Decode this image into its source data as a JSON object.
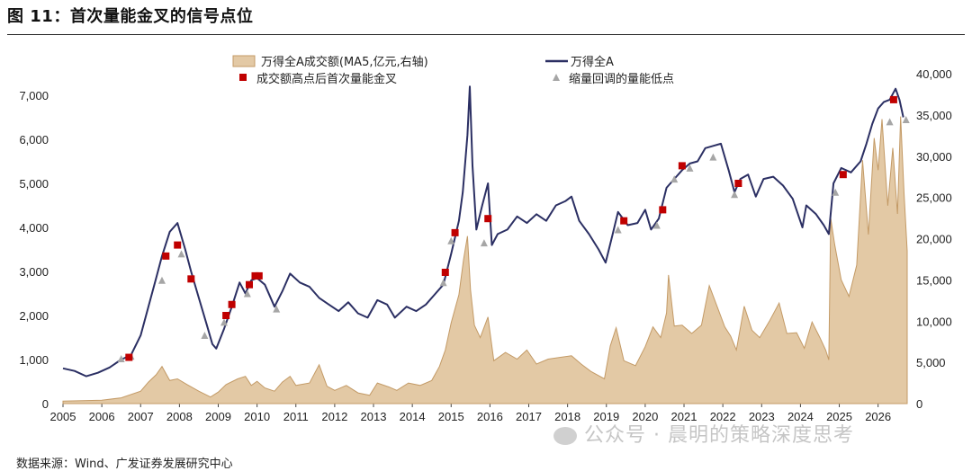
{
  "figure": {
    "title": "图 11：首次量能金叉的信号点位",
    "source": "数据来源：Wind、广发证券发展研究中心",
    "watermark": "公众号 · 晨明的策略深度思考"
  },
  "chart_data": {
    "type": "line",
    "x_axis": {
      "labels": [
        "2005",
        "2006",
        "2007",
        "2008",
        "2009",
        "2010",
        "2011",
        "2012",
        "2013",
        "2014",
        "2015",
        "2016",
        "2017",
        "2018",
        "2019",
        "2020",
        "2021",
        "2022",
        "2023",
        "2024",
        "2025",
        "2026"
      ],
      "range": [
        2005,
        2026.75
      ]
    },
    "y_left": {
      "ticks": [
        "0",
        "1,000",
        "2,000",
        "3,000",
        "4,000",
        "5,000",
        "6,000",
        "7,000"
      ],
      "range": [
        0,
        7000
      ]
    },
    "y_right": {
      "ticks": [
        "0",
        "5,000",
        "10,000",
        "15,000",
        "20,000",
        "25,000",
        "30,000",
        "35,000",
        "40,000"
      ],
      "range": [
        0,
        40000
      ]
    },
    "legend": {
      "position": "top",
      "labels": {
        "area": "万得全A成交额(MA5,亿元,右轴)",
        "line": "万得全A",
        "red": "成交额高点后首次量能金叉",
        "gray": "缩量回调的量能低点"
      }
    },
    "colors": {
      "line": "#2b2f63",
      "area_fill": "#e3c9a5",
      "area_stroke": "#c39a66",
      "red": "#c00000",
      "gray": "#a6a6a6"
    },
    "series": [
      {
        "name": "万得全A",
        "axis": "left",
        "points": [
          [
            2005.0,
            800
          ],
          [
            2005.3,
            740
          ],
          [
            2005.6,
            620
          ],
          [
            2005.9,
            700
          ],
          [
            2006.2,
            820
          ],
          [
            2006.5,
            1000
          ],
          [
            2006.75,
            1100
          ],
          [
            2007.0,
            1550
          ],
          [
            2007.2,
            2200
          ],
          [
            2007.4,
            2850
          ],
          [
            2007.55,
            3350
          ],
          [
            2007.75,
            3900
          ],
          [
            2007.95,
            4100
          ],
          [
            2008.15,
            3500
          ],
          [
            2008.3,
            3000
          ],
          [
            2008.5,
            2400
          ],
          [
            2008.7,
            1800
          ],
          [
            2008.85,
            1350
          ],
          [
            2008.95,
            1250
          ],
          [
            2009.15,
            1700
          ],
          [
            2009.35,
            2200
          ],
          [
            2009.55,
            2750
          ],
          [
            2009.7,
            2500
          ],
          [
            2009.85,
            2800
          ],
          [
            2010.0,
            2850
          ],
          [
            2010.2,
            2700
          ],
          [
            2010.45,
            2200
          ],
          [
            2010.65,
            2550
          ],
          [
            2010.85,
            2950
          ],
          [
            2011.1,
            2750
          ],
          [
            2011.35,
            2650
          ],
          [
            2011.6,
            2400
          ],
          [
            2011.85,
            2250
          ],
          [
            2012.1,
            2100
          ],
          [
            2012.35,
            2300
          ],
          [
            2012.6,
            2050
          ],
          [
            2012.85,
            1950
          ],
          [
            2013.1,
            2350
          ],
          [
            2013.35,
            2250
          ],
          [
            2013.55,
            1950
          ],
          [
            2013.85,
            2200
          ],
          [
            2014.1,
            2100
          ],
          [
            2014.35,
            2250
          ],
          [
            2014.55,
            2450
          ],
          [
            2014.8,
            2700
          ],
          [
            2015.0,
            3400
          ],
          [
            2015.2,
            4150
          ],
          [
            2015.3,
            4800
          ],
          [
            2015.42,
            6100
          ],
          [
            2015.48,
            7200
          ],
          [
            2015.55,
            5400
          ],
          [
            2015.65,
            3950
          ],
          [
            2015.8,
            4500
          ],
          [
            2015.95,
            5000
          ],
          [
            2016.05,
            3600
          ],
          [
            2016.2,
            3850
          ],
          [
            2016.45,
            3950
          ],
          [
            2016.7,
            4250
          ],
          [
            2016.95,
            4100
          ],
          [
            2017.2,
            4300
          ],
          [
            2017.45,
            4150
          ],
          [
            2017.7,
            4500
          ],
          [
            2017.95,
            4600
          ],
          [
            2018.1,
            4700
          ],
          [
            2018.3,
            4150
          ],
          [
            2018.55,
            3850
          ],
          [
            2018.8,
            3500
          ],
          [
            2018.98,
            3200
          ],
          [
            2019.15,
            3800
          ],
          [
            2019.3,
            4350
          ],
          [
            2019.55,
            4050
          ],
          [
            2019.8,
            4100
          ],
          [
            2020.0,
            4400
          ],
          [
            2020.15,
            3950
          ],
          [
            2020.35,
            4200
          ],
          [
            2020.55,
            4900
          ],
          [
            2020.75,
            5100
          ],
          [
            2020.95,
            5300
          ],
          [
            2021.15,
            5450
          ],
          [
            2021.35,
            5500
          ],
          [
            2021.55,
            5800
          ],
          [
            2021.75,
            5850
          ],
          [
            2021.95,
            5900
          ],
          [
            2022.15,
            5300
          ],
          [
            2022.3,
            4800
          ],
          [
            2022.45,
            5100
          ],
          [
            2022.65,
            5200
          ],
          [
            2022.85,
            4700
          ],
          [
            2023.05,
            5100
          ],
          [
            2023.3,
            5150
          ],
          [
            2023.55,
            4950
          ],
          [
            2023.8,
            4650
          ],
          [
            2024.05,
            4000
          ],
          [
            2024.15,
            4500
          ],
          [
            2024.4,
            4300
          ],
          [
            2024.6,
            4050
          ],
          [
            2024.73,
            3850
          ],
          [
            2024.85,
            5000
          ],
          [
            2025.05,
            5350
          ],
          [
            2025.3,
            5250
          ],
          [
            2025.55,
            5500
          ],
          [
            2025.7,
            5900
          ],
          [
            2025.85,
            6350
          ],
          [
            2026.0,
            6700
          ],
          [
            2026.15,
            6850
          ],
          [
            2026.3,
            6900
          ],
          [
            2026.45,
            7150
          ],
          [
            2026.55,
            6900
          ],
          [
            2026.65,
            6500
          ]
        ]
      },
      {
        "name": "万得全A成交额(MA5,亿元,右轴)",
        "axis": "right",
        "type": "area",
        "points": [
          [
            2005.0,
            300
          ],
          [
            2006.0,
            400
          ],
          [
            2006.5,
            700
          ],
          [
            2007.0,
            1500
          ],
          [
            2007.2,
            2600
          ],
          [
            2007.4,
            3500
          ],
          [
            2007.55,
            4500
          ],
          [
            2007.75,
            2800
          ],
          [
            2007.95,
            3000
          ],
          [
            2008.2,
            2300
          ],
          [
            2008.5,
            1500
          ],
          [
            2008.8,
            800
          ],
          [
            2009.0,
            1400
          ],
          [
            2009.2,
            2300
          ],
          [
            2009.5,
            3000
          ],
          [
            2009.7,
            3300
          ],
          [
            2009.85,
            2200
          ],
          [
            2010.0,
            2700
          ],
          [
            2010.2,
            1900
          ],
          [
            2010.45,
            1500
          ],
          [
            2010.65,
            2600
          ],
          [
            2010.85,
            3300
          ],
          [
            2011.0,
            2200
          ],
          [
            2011.35,
            2500
          ],
          [
            2011.6,
            4700
          ],
          [
            2011.8,
            2100
          ],
          [
            2012.0,
            1600
          ],
          [
            2012.3,
            2200
          ],
          [
            2012.6,
            1300
          ],
          [
            2012.9,
            1000
          ],
          [
            2013.1,
            2500
          ],
          [
            2013.4,
            2000
          ],
          [
            2013.6,
            1600
          ],
          [
            2013.9,
            2500
          ],
          [
            2014.2,
            2200
          ],
          [
            2014.5,
            2800
          ],
          [
            2014.7,
            4500
          ],
          [
            2014.85,
            6500
          ],
          [
            2015.0,
            9800
          ],
          [
            2015.2,
            13200
          ],
          [
            2015.32,
            17500
          ],
          [
            2015.42,
            20300
          ],
          [
            2015.5,
            13800
          ],
          [
            2015.6,
            9500
          ],
          [
            2015.75,
            8000
          ],
          [
            2015.95,
            10500
          ],
          [
            2016.1,
            5200
          ],
          [
            2016.4,
            6200
          ],
          [
            2016.7,
            5400
          ],
          [
            2016.95,
            6500
          ],
          [
            2017.2,
            4800
          ],
          [
            2017.5,
            5400
          ],
          [
            2017.8,
            5600
          ],
          [
            2018.1,
            5800
          ],
          [
            2018.35,
            4800
          ],
          [
            2018.6,
            3900
          ],
          [
            2018.95,
            3000
          ],
          [
            2019.1,
            7000
          ],
          [
            2019.25,
            9200
          ],
          [
            2019.45,
            5200
          ],
          [
            2019.75,
            4600
          ],
          [
            2020.0,
            6900
          ],
          [
            2020.2,
            9300
          ],
          [
            2020.4,
            8000
          ],
          [
            2020.55,
            11000
          ],
          [
            2020.6,
            15600
          ],
          [
            2020.75,
            9400
          ],
          [
            2020.95,
            9500
          ],
          [
            2021.2,
            8500
          ],
          [
            2021.45,
            9500
          ],
          [
            2021.65,
            14300
          ],
          [
            2021.85,
            11800
          ],
          [
            2022.05,
            9300
          ],
          [
            2022.2,
            8200
          ],
          [
            2022.35,
            6500
          ],
          [
            2022.55,
            11800
          ],
          [
            2022.75,
            8900
          ],
          [
            2022.95,
            8000
          ],
          [
            2023.2,
            10000
          ],
          [
            2023.45,
            12200
          ],
          [
            2023.65,
            8500
          ],
          [
            2023.9,
            8600
          ],
          [
            2024.1,
            6700
          ],
          [
            2024.3,
            9900
          ],
          [
            2024.5,
            8000
          ],
          [
            2024.65,
            6500
          ],
          [
            2024.73,
            5300
          ],
          [
            2024.78,
            22500
          ],
          [
            2024.88,
            19300
          ],
          [
            2025.05,
            15000
          ],
          [
            2025.25,
            13000
          ],
          [
            2025.45,
            16800
          ],
          [
            2025.6,
            29500
          ],
          [
            2025.75,
            20500
          ],
          [
            2025.9,
            32200
          ],
          [
            2026.0,
            28300
          ],
          [
            2026.1,
            34500
          ],
          [
            2026.25,
            24000
          ],
          [
            2026.38,
            31000
          ],
          [
            2026.5,
            23000
          ],
          [
            2026.58,
            34800
          ],
          [
            2026.67,
            25500
          ],
          [
            2026.75,
            18500
          ]
        ]
      }
    ],
    "markers": {
      "red": [
        [
          2006.7,
          1050
        ],
        [
          2007.65,
          3350
        ],
        [
          2007.95,
          3600
        ],
        [
          2008.3,
          2830
        ],
        [
          2009.2,
          2000
        ],
        [
          2009.35,
          2250
        ],
        [
          2009.8,
          2700
        ],
        [
          2009.95,
          2900
        ],
        [
          2010.05,
          2900
        ],
        [
          2014.85,
          2980
        ],
        [
          2015.1,
          3880
        ],
        [
          2015.95,
          4200
        ],
        [
          2019.45,
          4150
        ],
        [
          2020.45,
          4400
        ],
        [
          2020.95,
          5400
        ],
        [
          2022.4,
          5000
        ],
        [
          2025.1,
          5200
        ],
        [
          2026.4,
          6900
        ]
      ],
      "gray": [
        [
          2006.5,
          1020
        ],
        [
          2006.75,
          1080
        ],
        [
          2007.55,
          2800
        ],
        [
          2008.05,
          3400
        ],
        [
          2008.65,
          1550
        ],
        [
          2009.15,
          1850
        ],
        [
          2009.75,
          2500
        ],
        [
          2010.5,
          2150
        ],
        [
          2014.8,
          2750
        ],
        [
          2015.0,
          3700
        ],
        [
          2015.85,
          3650
        ],
        [
          2019.3,
          3950
        ],
        [
          2020.3,
          4050
        ],
        [
          2020.75,
          5100
        ],
        [
          2021.15,
          5350
        ],
        [
          2021.75,
          5600
        ],
        [
          2022.3,
          4750
        ],
        [
          2024.9,
          4800
        ],
        [
          2026.3,
          6400
        ],
        [
          2026.72,
          6450
        ]
      ]
    }
  }
}
